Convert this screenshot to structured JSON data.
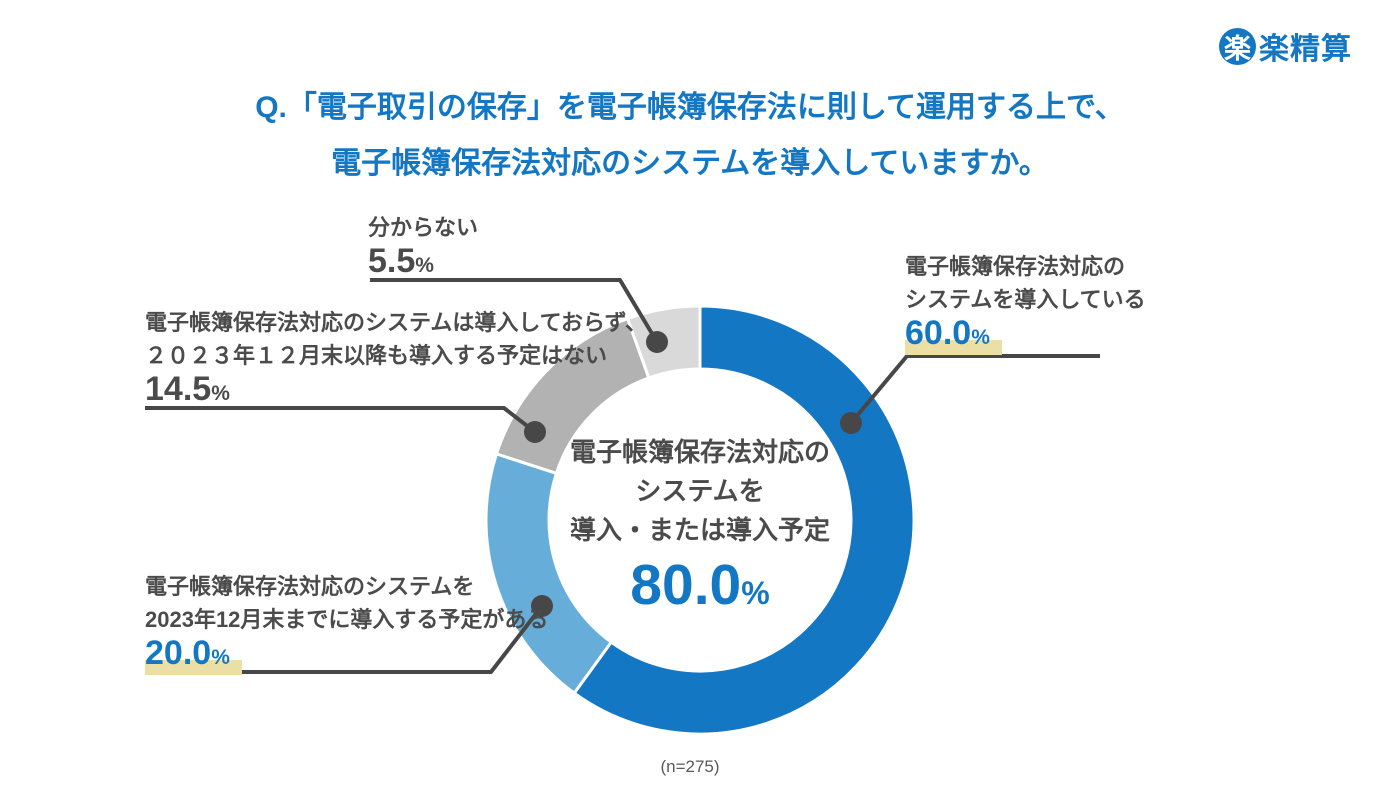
{
  "logo": {
    "circle_char": "楽",
    "rest": "楽精算"
  },
  "header": {
    "title_line1": "Q.「電子取引の保存」を電子帳簿保存法に則して運用する上で、",
    "title_line2": "電子帳簿保存法対応のシステムを導入していますか。"
  },
  "colors": {
    "brand_blue": "#1377c4",
    "segment_blue": "#1377c4",
    "segment_light_blue": "#66add9",
    "segment_gray": "#b2b2b2",
    "segment_light_gray": "#d9d9d9",
    "highlight_yellow": "#ecdfa5",
    "text_gray": "#4b4b4b",
    "leader_gray": "#474747"
  },
  "chart_data": {
    "type": "pie",
    "subtype": "donut",
    "title": "Q.「電子取引の保存」を電子帳簿保存法に則して運用する上で、電子帳簿保存法対応のシステムを導入していますか。",
    "start_angle_deg": 0,
    "direction": "clockwise",
    "sample_label": "(n=275)",
    "segments": [
      {
        "label": "電子帳簿保存法対応のシステムを導入している",
        "value": 60.0,
        "display": "60.0",
        "unit": "%",
        "color": "#1377c4"
      },
      {
        "label": "電子帳簿保存法対応のシステムを2023年12月末までに導入する予定がある",
        "value": 20.0,
        "display": "20.0",
        "unit": "%",
        "color": "#66add9"
      },
      {
        "label": "電子帳簿保存法対応のシステムは導入しておらず、２０２３年１２月末以降も導入する予定はない",
        "value": 14.5,
        "display": "14.5",
        "unit": "%",
        "color": "#b2b2b2"
      },
      {
        "label": "分からない",
        "value": 5.5,
        "display": "5.5",
        "unit": "%",
        "color": "#d9d9d9"
      }
    ],
    "center_annotation": {
      "lines": [
        "電子帳簿保存法対応の",
        "システムを",
        "導入・または導入予定"
      ],
      "value": "80.0",
      "unit": "%"
    }
  },
  "callouts": {
    "s60": {
      "lines": [
        "電子帳簿保存法対応の",
        "システムを導入している"
      ],
      "value": "60.0",
      "unit": "%"
    },
    "s20": {
      "lines": [
        "電子帳簿保存法対応のシステムを",
        "2023年12月末までに導入する予定がある"
      ],
      "value": "20.0",
      "unit": "%"
    },
    "s145": {
      "lines": [
        "電子帳簿保存法対応のシステムは導入しておらず、",
        "２０２３年１２月末以降も導入する予定はない"
      ],
      "value": "14.5",
      "unit": "%"
    },
    "s55": {
      "lines": [
        "分からない"
      ],
      "value": "5.5",
      "unit": "%"
    }
  }
}
